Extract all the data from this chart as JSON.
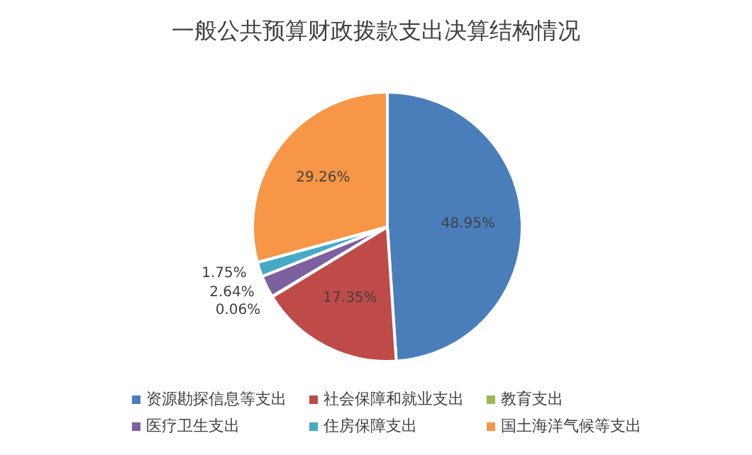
{
  "chart_data": {
    "type": "pie",
    "title": "一般公共预算财政拨款支出决算结构情况",
    "categories": [
      "资源勘探信息等支出",
      "社会保障和就业支出",
      "教育支出",
      "医疗卫生支出",
      "住房保障支出",
      "国土海洋气候等支出"
    ],
    "values": [
      48.95,
      17.35,
      0.06,
      2.64,
      1.75,
      29.26
    ],
    "value_labels": [
      "48.95%",
      "17.35%",
      "0.06%",
      "2.64%",
      "1.75%",
      "29.26%"
    ],
    "colors": [
      "#4a7ebb",
      "#be4b48",
      "#98b954",
      "#7d60a0",
      "#46aac5",
      "#f79646"
    ],
    "legend": "bottom"
  }
}
